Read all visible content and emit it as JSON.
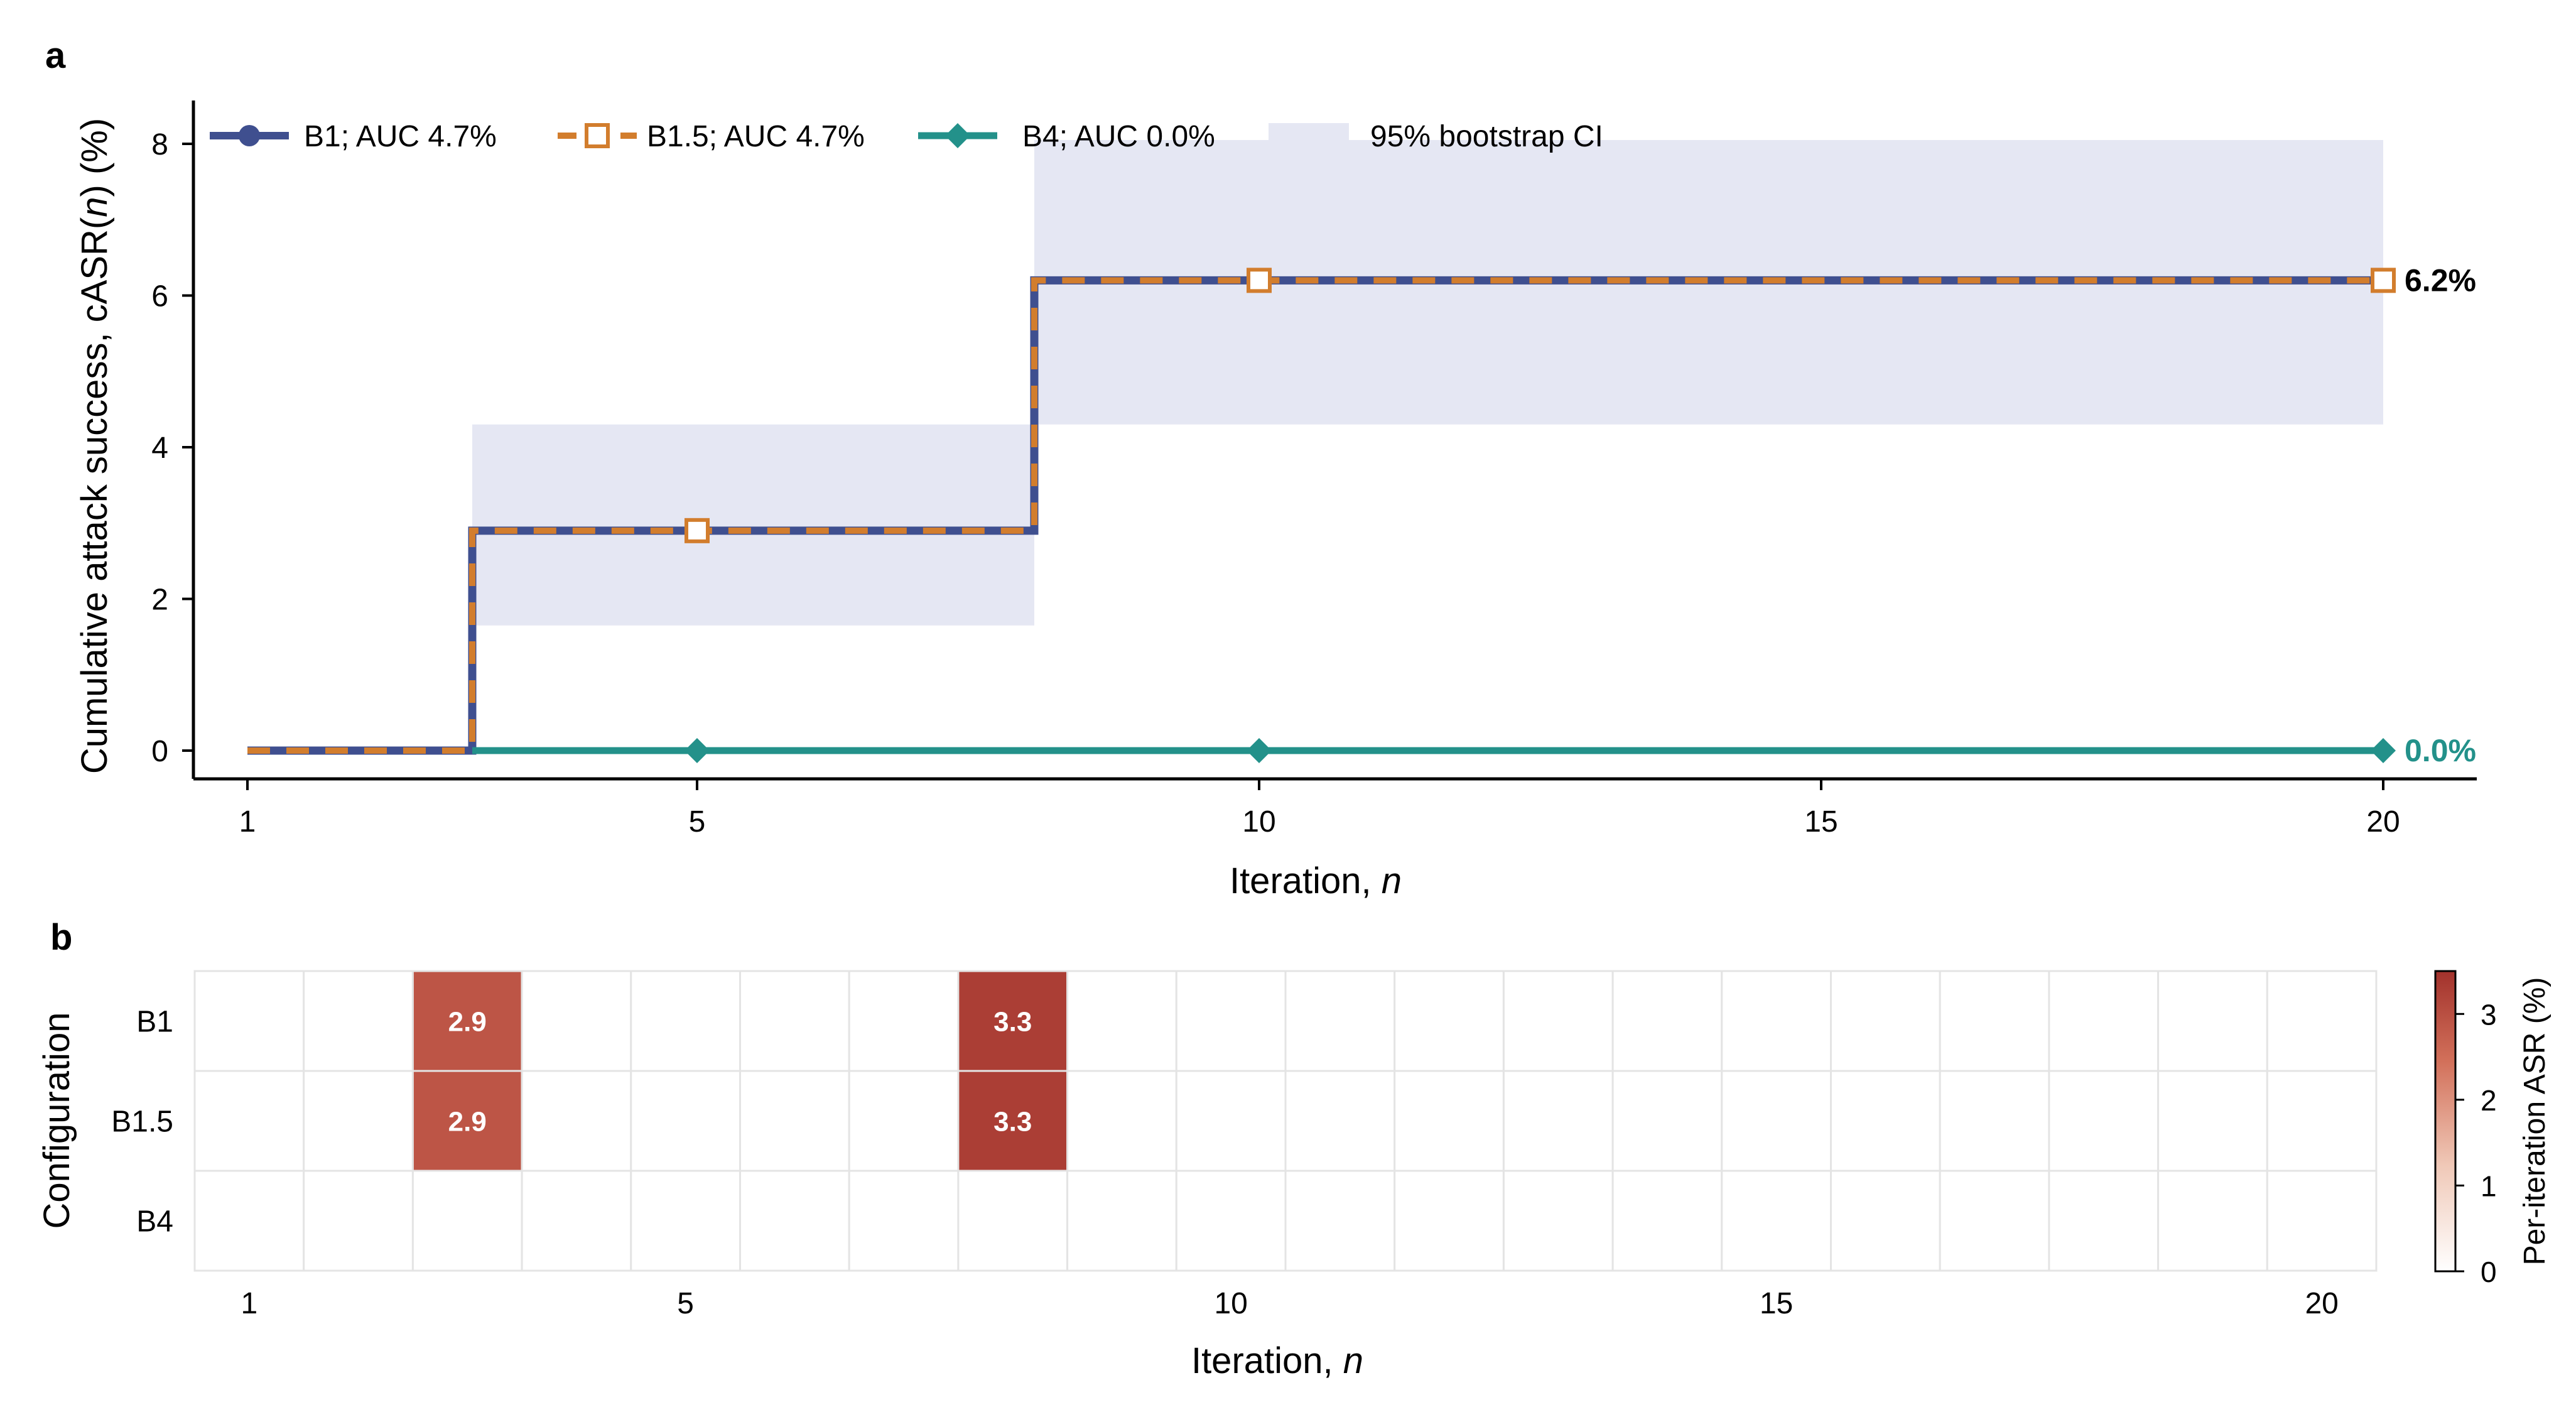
{
  "panels": {
    "a_label": "a",
    "b_label": "b"
  },
  "colors": {
    "B1": "#3f4f8f",
    "B1.5": "#d27d2d",
    "B4": "#23918a",
    "ci_fill": "#e5e7f3",
    "heat_low": "#ffffff",
    "heat_high": "#a2322c",
    "grid": "#e4e4e4"
  },
  "chart_data": [
    {
      "type": "line",
      "panel": "a",
      "title": "",
      "xlabel": "Iteration, n",
      "ylabel": "Cumulative attack success, cASR(n) (%)",
      "xlim": [
        0.5,
        21.2
      ],
      "ylim": [
        -0.35,
        8.55
      ],
      "xticks": [
        1,
        5,
        10,
        15,
        20
      ],
      "yticks": [
        0,
        2,
        4,
        6,
        8
      ],
      "step": "post",
      "x": [
        1,
        2,
        3,
        4,
        5,
        6,
        7,
        8,
        9,
        10,
        11,
        12,
        13,
        14,
        15,
        16,
        17,
        18,
        19,
        20
      ],
      "series": [
        {
          "name": "B1; AUC 4.7%",
          "key": "B1",
          "marker": "circle",
          "values": [
            0,
            0,
            2.9,
            2.9,
            2.9,
            2.9,
            2.9,
            6.2,
            6.2,
            6.2,
            6.2,
            6.2,
            6.2,
            6.2,
            6.2,
            6.2,
            6.2,
            6.2,
            6.2,
            6.2
          ]
        },
        {
          "name": "B1.5; AUC 4.7%",
          "key": "B1.5",
          "marker": "open-square",
          "dashed": true,
          "markers_at": [
            5,
            10,
            20
          ],
          "values": [
            0,
            0,
            2.9,
            2.9,
            2.9,
            2.9,
            2.9,
            6.2,
            6.2,
            6.2,
            6.2,
            6.2,
            6.2,
            6.2,
            6.2,
            6.2,
            6.2,
            6.2,
            6.2,
            6.2
          ]
        },
        {
          "name": "B4; AUC 0.0%",
          "key": "B4",
          "marker": "diamond",
          "markers_at": [
            5,
            10,
            20
          ],
          "values": [
            0,
            0,
            0,
            0,
            0,
            0,
            0,
            0,
            0,
            0,
            0,
            0,
            0,
            0,
            0,
            0,
            0,
            0,
            0,
            0
          ]
        }
      ],
      "ci_band": {
        "name": "95% bootstrap CI",
        "segments": [
          {
            "x0": 3,
            "x1": 8,
            "low": 1.65,
            "high": 4.3
          },
          {
            "x0": 8,
            "x1": 20,
            "low": 4.3,
            "high": 8.05
          }
        ]
      },
      "end_labels": [
        {
          "text": "6.2%",
          "key": "B1",
          "y": 6.2
        },
        {
          "text": "0.0%",
          "key": "B4",
          "y": 0
        }
      ],
      "legend_position": "top-left"
    },
    {
      "type": "heatmap",
      "panel": "b",
      "xlabel": "Iteration, n",
      "ylabel": "Configuration",
      "rows": [
        "B1",
        "B1.5",
        "B4"
      ],
      "columns": [
        1,
        2,
        3,
        4,
        5,
        6,
        7,
        8,
        9,
        10,
        11,
        12,
        13,
        14,
        15,
        16,
        17,
        18,
        19,
        20
      ],
      "xticks": [
        1,
        5,
        10,
        15,
        20
      ],
      "values": [
        [
          0,
          0,
          2.9,
          0,
          0,
          0,
          0,
          3.3,
          0,
          0,
          0,
          0,
          0,
          0,
          0,
          0,
          0,
          0,
          0,
          0
        ],
        [
          0,
          0,
          2.9,
          0,
          0,
          0,
          0,
          3.3,
          0,
          0,
          0,
          0,
          0,
          0,
          0,
          0,
          0,
          0,
          0,
          0
        ],
        [
          0,
          0,
          0,
          0,
          0,
          0,
          0,
          0,
          0,
          0,
          0,
          0,
          0,
          0,
          0,
          0,
          0,
          0,
          0,
          0
        ]
      ],
      "annotations": [
        {
          "row": 0,
          "col": 3,
          "text": "2.9"
        },
        {
          "row": 0,
          "col": 8,
          "text": "3.3"
        },
        {
          "row": 1,
          "col": 3,
          "text": "2.9"
        },
        {
          "row": 1,
          "col": 8,
          "text": "3.3"
        }
      ],
      "colorbar": {
        "label": "Per-iteration ASR (%)",
        "range": [
          0,
          3.5
        ],
        "ticks": [
          0,
          1,
          2,
          3
        ]
      }
    }
  ]
}
